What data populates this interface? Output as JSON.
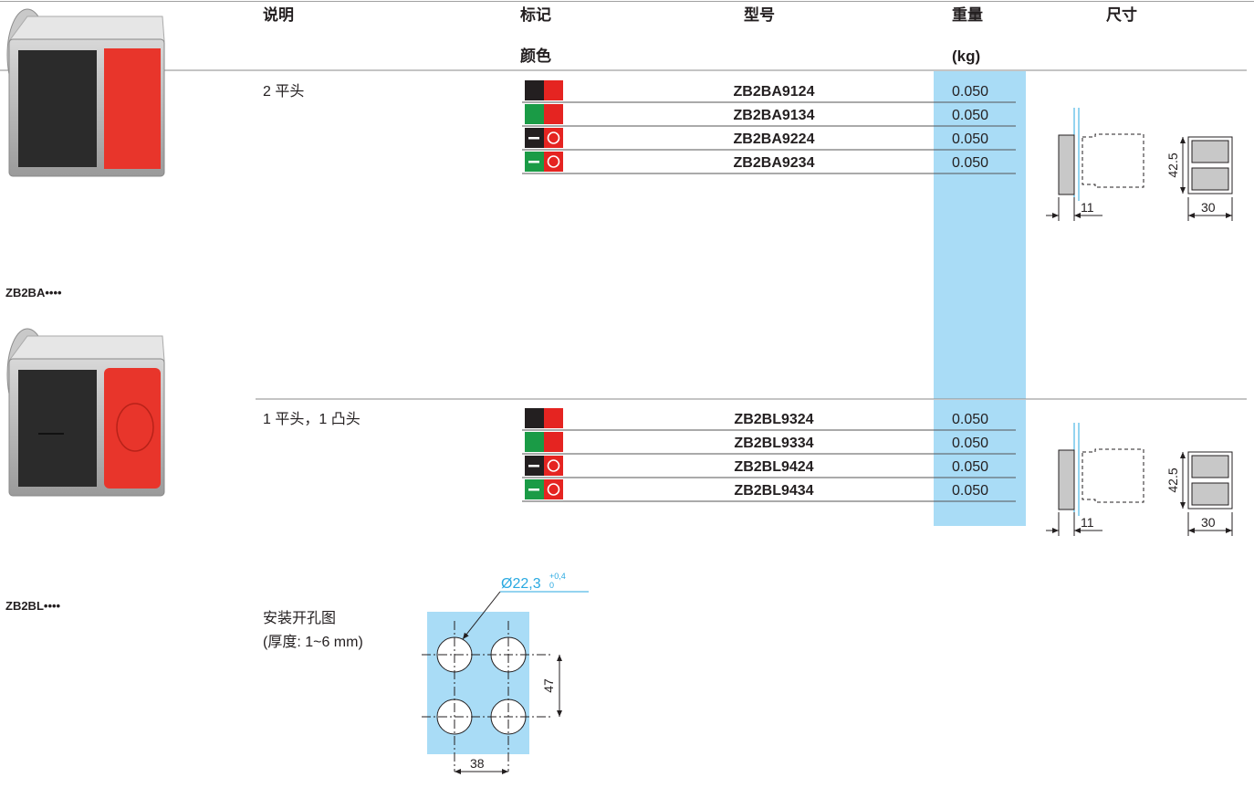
{
  "header": {
    "description": "说明",
    "color_line1": "标记",
    "color_line2": "颜色",
    "model": "型号",
    "weight_line1": "重量",
    "weight_line2": "(kg)",
    "dimensions": "尺寸"
  },
  "groups": [
    {
      "description": "2 平头",
      "image_label": "ZB2BA••••",
      "rows": [
        {
          "model": "ZB2BA9124",
          "weight": "0.050"
        },
        {
          "model": "ZB2BA9134",
          "weight": "0.050"
        },
        {
          "model": "ZB2BA9224",
          "weight": "0.050"
        },
        {
          "model": "ZB2BA9234",
          "weight": "0.050"
        }
      ],
      "dimensions": {
        "depth": "11",
        "height": "42.5",
        "width": "30"
      }
    },
    {
      "description": "1 平头，1 凸头",
      "image_label": "ZB2BL••••",
      "rows": [
        {
          "model": "ZB2BL9324",
          "weight": "0.050"
        },
        {
          "model": "ZB2BL9334",
          "weight": "0.050"
        },
        {
          "model": "ZB2BL9424",
          "weight": "0.050"
        },
        {
          "model": "ZB2BL9434",
          "weight": "0.050"
        }
      ],
      "dimensions": {
        "depth": "11",
        "height": "42.5",
        "width": "30"
      }
    }
  ],
  "cutout": {
    "title": "安装开孔图",
    "thickness": "(厚度: 1~6 mm)",
    "diameter": "Ø22,3",
    "tolerance_upper": "+0,4",
    "tolerance_lower": "0",
    "spacing_vertical": "47",
    "spacing_horizontal": "38"
  }
}
